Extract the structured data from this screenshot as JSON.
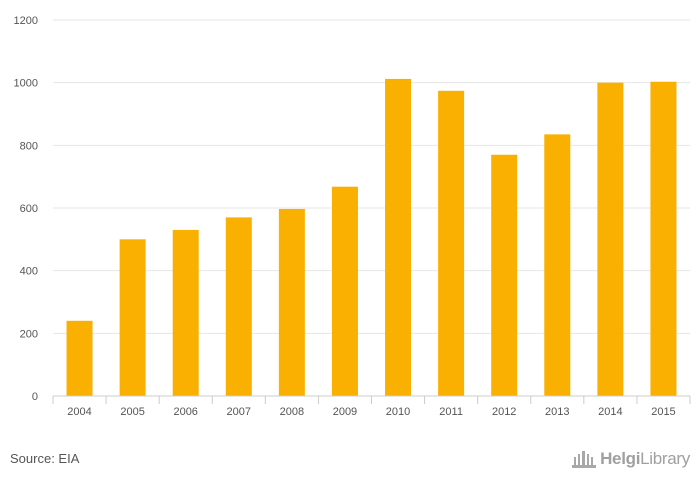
{
  "chart_data": {
    "type": "bar",
    "categories": [
      "2004",
      "2005",
      "2006",
      "2007",
      "2008",
      "2009",
      "2010",
      "2011",
      "2012",
      "2013",
      "2014",
      "2015"
    ],
    "values": [
      240,
      500,
      530,
      570,
      597,
      668,
      1012,
      974,
      770,
      835,
      1000,
      1003
    ],
    "yticks": [
      0,
      200,
      400,
      600,
      800,
      1000,
      1200
    ],
    "ylim": [
      0,
      1200
    ],
    "grid": true,
    "bar_color": "#f9b000"
  },
  "footer": {
    "source": "Source: EIA",
    "logo_bold": "Helgi",
    "logo_thin": "Library"
  }
}
